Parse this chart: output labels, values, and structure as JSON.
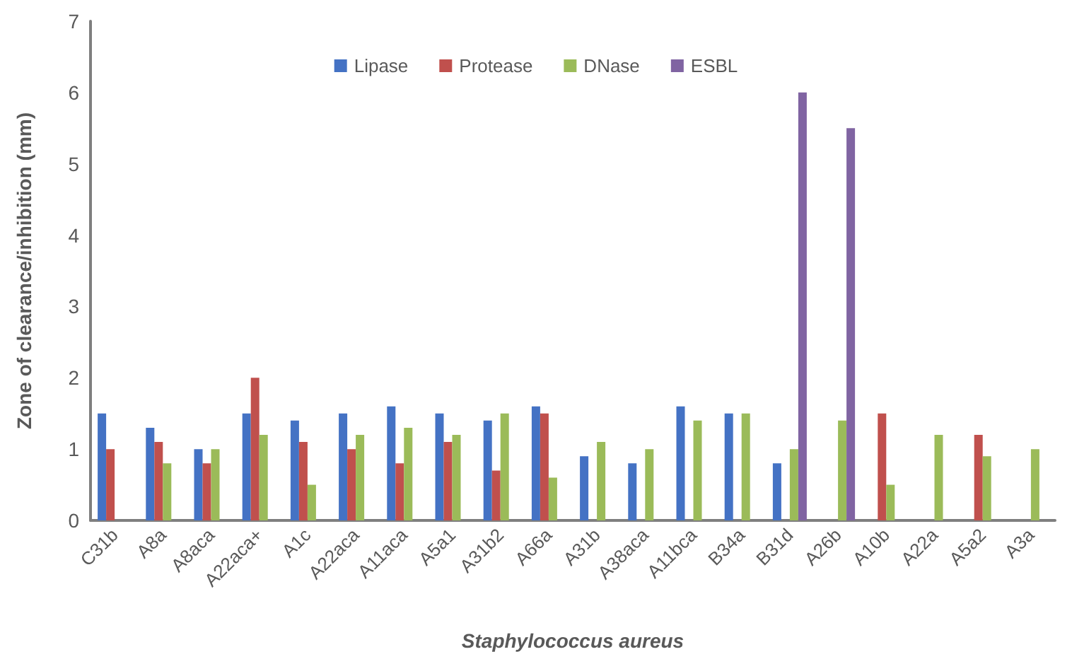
{
  "chart_data": {
    "type": "bar",
    "xlabel": "Staphylococcus aureus",
    "ylabel": "Zone of clearance/inhibition (mm)",
    "categories": [
      "C31b",
      "A8a",
      "A8aca",
      "A22aca+",
      "A1c",
      "A22aca",
      "A11aca",
      "A5a1",
      "A31b2",
      "A66a",
      "A31b",
      "A38aca",
      "A11bca",
      "B34a",
      "B31d",
      "A26b",
      "A10b",
      "A22a",
      "A5a2",
      "A3a"
    ],
    "series": [
      {
        "name": "Lipase",
        "color": "#4472c4",
        "values": [
          1.5,
          1.3,
          1.0,
          1.5,
          1.4,
          1.5,
          1.6,
          1.5,
          1.4,
          1.6,
          0.9,
          0.8,
          1.6,
          1.5,
          0.8,
          null,
          null,
          null,
          null,
          null
        ]
      },
      {
        "name": "Protease",
        "color": "#c0504d",
        "values": [
          1.0,
          1.1,
          0.8,
          2.0,
          1.1,
          1.0,
          0.8,
          1.1,
          0.7,
          1.5,
          null,
          null,
          null,
          null,
          null,
          null,
          1.5,
          null,
          1.2,
          null
        ]
      },
      {
        "name": "DNase",
        "color": "#9bbb59",
        "values": [
          null,
          0.8,
          1.0,
          1.2,
          0.5,
          1.2,
          1.3,
          1.2,
          1.5,
          0.6,
          1.1,
          1.0,
          1.4,
          1.5,
          1.0,
          1.4,
          0.5,
          1.2,
          0.9,
          1.0
        ]
      },
      {
        "name": "ESBL",
        "color": "#8064a2",
        "values": [
          null,
          null,
          null,
          null,
          null,
          null,
          null,
          null,
          null,
          null,
          null,
          null,
          null,
          null,
          6.0,
          5.5,
          null,
          null,
          null,
          null
        ]
      }
    ],
    "ylim": [
      0,
      7
    ],
    "yticks": [
      0,
      1,
      2,
      3,
      4,
      5,
      6,
      7
    ],
    "grid": false,
    "legend": "top"
  }
}
